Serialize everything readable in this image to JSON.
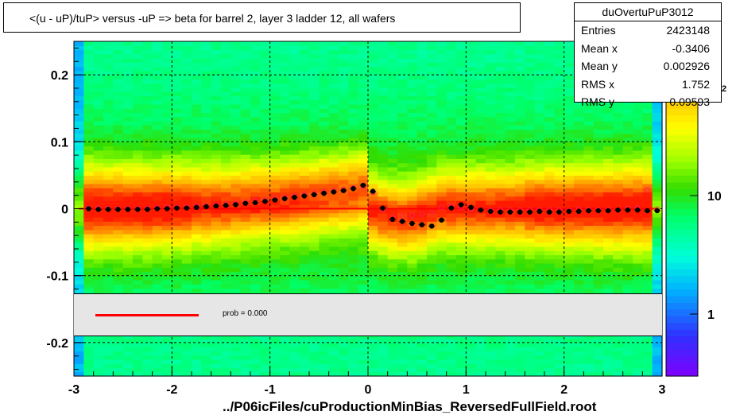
{
  "title": "<(u - uP)/tuP> versus  -uP => beta for barrel 2, layer 3 ladder 12, all wafers",
  "footer": "../P06icFiles/cuProductionMinBias_ReversedFullField.root",
  "stats": {
    "name": "duOvertuPuP3012",
    "rows": [
      {
        "label": "Entries",
        "value": "2423148"
      },
      {
        "label": "Mean x",
        "value": "-0.3406"
      },
      {
        "label": "Mean y",
        "value": "0.002926"
      },
      {
        "label": "RMS x",
        "value": "1.752"
      },
      {
        "label": "RMS y",
        "value": "0.09593"
      }
    ]
  },
  "legend": {
    "fit_label": "prob = 0.000",
    "fit_color": "#ff0000"
  },
  "colorbar": {
    "ticks": [
      {
        "value": 1,
        "label": "1"
      },
      {
        "value": 10,
        "label": "10"
      }
    ],
    "partial_tick": "2",
    "log_range": [
      0.3,
      200
    ]
  },
  "chart_data": {
    "type": "heatmap",
    "xlim": [
      -3,
      3
    ],
    "ylim": [
      -0.25,
      0.25
    ],
    "xticks": [
      {
        "value": -3,
        "label": "-3"
      },
      {
        "value": -2,
        "label": "-2"
      },
      {
        "value": -1,
        "label": "-1"
      },
      {
        "value": 0,
        "label": "0"
      },
      {
        "value": 1,
        "label": "1"
      },
      {
        "value": 2,
        "label": "2"
      },
      {
        "value": 3,
        "label": "3"
      }
    ],
    "yticks": [
      {
        "value": -0.2,
        "label": "-0.2"
      },
      {
        "value": -0.1,
        "label": "-0.1"
      },
      {
        "value": 0,
        "label": "0"
      },
      {
        "value": 0.1,
        "label": "0.1"
      },
      {
        "value": 0.2,
        "label": "0.2"
      }
    ],
    "grid": true,
    "colorscale": "log",
    "profile_black": {
      "x": [
        -2.85,
        -2.75,
        -2.65,
        -2.55,
        -2.45,
        -2.35,
        -2.25,
        -2.15,
        -2.05,
        -1.95,
        -1.85,
        -1.75,
        -1.65,
        -1.55,
        -1.45,
        -1.35,
        -1.25,
        -1.15,
        -1.05,
        -0.95,
        -0.85,
        -0.75,
        -0.65,
        -0.55,
        -0.45,
        -0.35,
        -0.25,
        -0.15,
        -0.05,
        0.05,
        0.15,
        0.25,
        0.35,
        0.45,
        0.55,
        0.65,
        0.75,
        0.85,
        0.95,
        1.05,
        1.15,
        1.25,
        1.35,
        1.45,
        1.55,
        1.65,
        1.75,
        1.85,
        1.95,
        2.05,
        2.15,
        2.25,
        2.35,
        2.45,
        2.55,
        2.65,
        2.75,
        2.85,
        2.95
      ],
      "y": [
        0,
        -0.001,
        -0.001,
        -0.001,
        -0.001,
        -0.001,
        -0.001,
        0,
        0,
        0.001,
        0.001,
        0.002,
        0.003,
        0.004,
        0.005,
        0.006,
        0.008,
        0.009,
        0.011,
        0.013,
        0.015,
        0.017,
        0.019,
        0.021,
        0.023,
        0.025,
        0.027,
        0.03,
        0.035,
        0.026,
        0.001,
        -0.016,
        -0.019,
        -0.022,
        -0.024,
        -0.026,
        -0.017,
        0.001,
        0.006,
        0.002,
        -0.002,
        -0.004,
        -0.005,
        -0.005,
        -0.005,
        -0.005,
        -0.004,
        -0.005,
        -0.005,
        -0.004,
        -0.004,
        -0.003,
        -0.003,
        -0.003,
        -0.002,
        -0.002,
        -0.002,
        -0.003,
        -0.003
      ]
    },
    "profile_red": {
      "x": [
        -2.85,
        -2.75,
        -2.65,
        -2.55,
        -2.45,
        -2.35,
        -2.25,
        -2.15,
        -2.05,
        -1.95,
        -1.85,
        -1.75,
        -1.65,
        -1.55,
        -1.45,
        -1.35,
        -1.25,
        -1.15,
        -1.05,
        -0.95,
        -0.85,
        -0.75,
        -0.65,
        -0.55,
        -0.45,
        -0.35,
        -0.25,
        -0.15,
        -0.05,
        0.05,
        0.15,
        0.25,
        0.35,
        0.45,
        0.55,
        0.65,
        0.75,
        0.85,
        0.95,
        1.05,
        1.15,
        1.25,
        1.35,
        1.45,
        1.55,
        1.65,
        1.75,
        1.85,
        1.95,
        2.05,
        2.15,
        2.25,
        2.35,
        2.45,
        2.55,
        2.65,
        2.75,
        2.85,
        2.95
      ],
      "y": [
        0.001,
        0.001,
        0,
        0,
        0,
        0,
        0,
        0.001,
        0.002,
        0.002,
        0.003,
        0.004,
        0.005,
        0.006,
        0.007,
        0.008,
        0.01,
        0.012,
        0.013,
        0.015,
        0.017,
        0.019,
        0.021,
        0.023,
        0.025,
        0.027,
        0.029,
        0.031,
        0.033,
        0.024,
        -0.001,
        -0.013,
        -0.011,
        -0.01,
        -0.008,
        -0.006,
        0.002,
        0.004,
        0.002,
        -0.001,
        -0.002,
        -0.003,
        -0.002,
        -0.002,
        -0.002,
        -0.002,
        -0.002,
        -0.002,
        -0.002,
        -0.003,
        -0.001,
        -0.002,
        -0.002,
        -0.002,
        -0.002,
        0,
        0.001,
        0.028,
        -0.001
      ]
    },
    "fit_line": {
      "x": [
        -2.95,
        2.95
      ],
      "y": [
        0,
        0
      ]
    }
  }
}
